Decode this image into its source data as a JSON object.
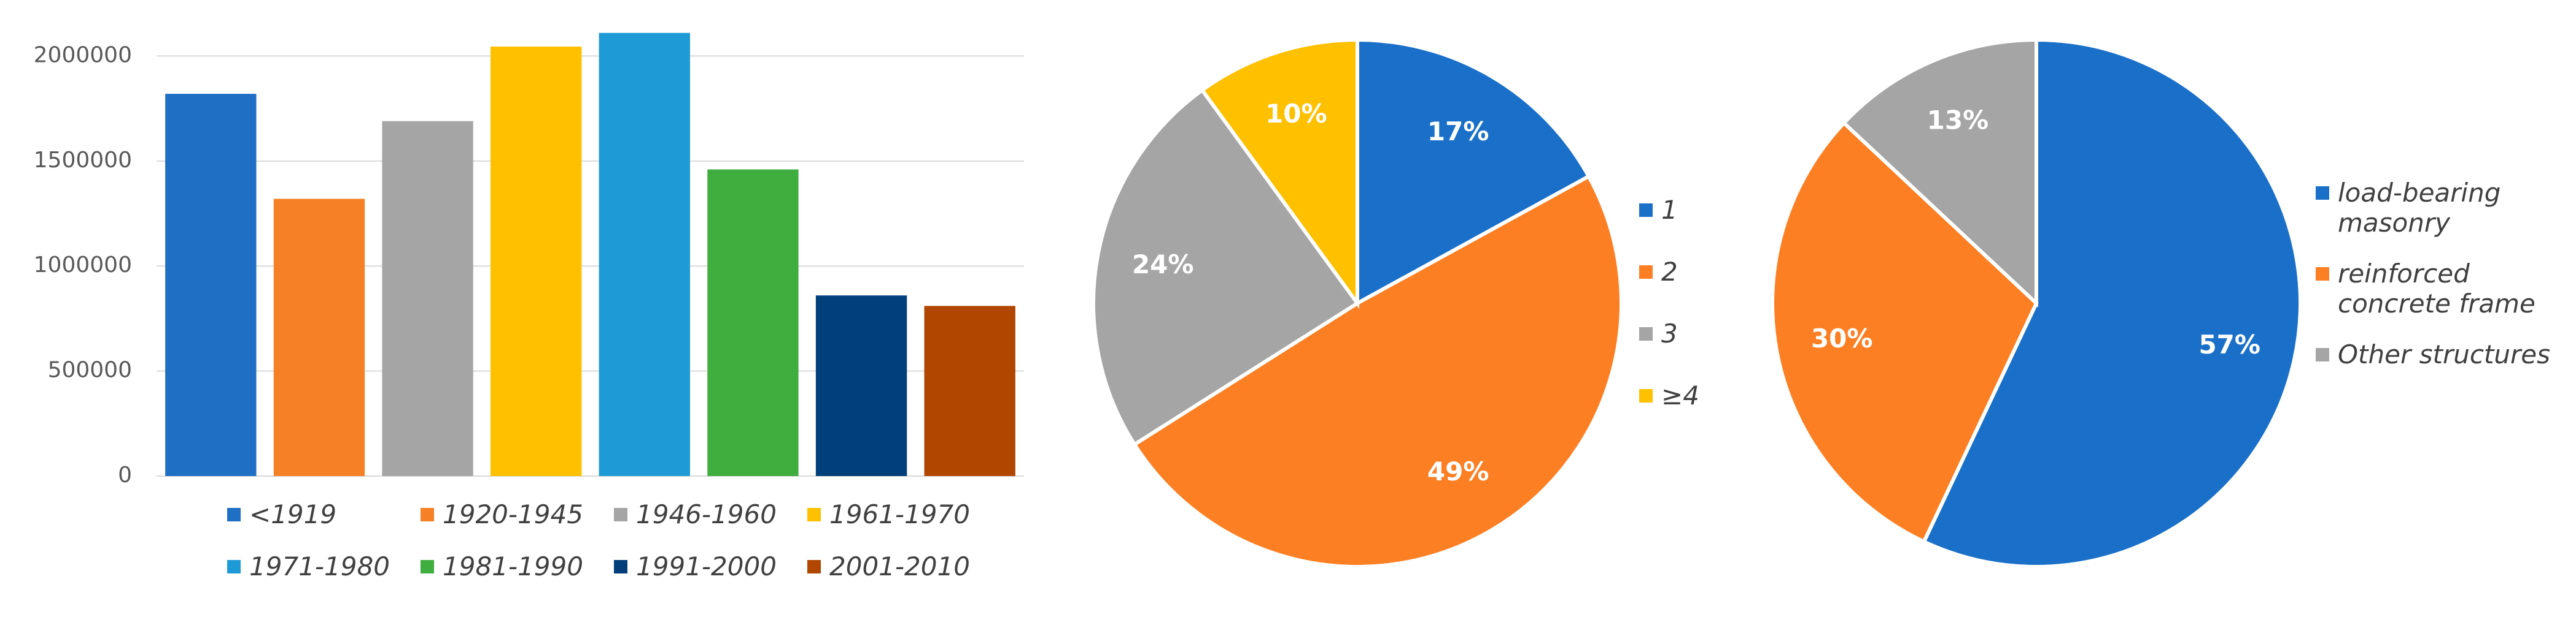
{
  "chart_data": [
    {
      "type": "bar",
      "categories": [
        "<1919",
        "1920-1945",
        "1946-1960",
        "1961-1970",
        "1971-1980",
        "1981-1990",
        "1991-2000",
        "2001-2010"
      ],
      "values": [
        1820000,
        1320000,
        1690000,
        2045000,
        2110000,
        1460000,
        860000,
        810000
      ],
      "colors": [
        "#1f6fc5",
        "#f58025",
        "#a5a5a5",
        "#ffc000",
        "#1e9bd7",
        "#3fae3f",
        "#003f7a",
        "#b04600"
      ],
      "ylim": [
        0,
        2150000
      ],
      "yticks": [
        0,
        500000,
        1000000,
        1500000,
        2000000
      ],
      "grid": true,
      "legend": "bottom"
    },
    {
      "type": "pie",
      "categories": [
        "1",
        "2",
        "3",
        "≥4"
      ],
      "values": [
        17,
        49,
        24,
        10
      ],
      "value_labels": [
        "17%",
        "49%",
        "24%",
        "10%"
      ],
      "colors": [
        "#1a70c8",
        "#fd7f23",
        "#a5a5a5",
        "#ffc000"
      ],
      "legend": "right"
    },
    {
      "type": "pie",
      "categories": [
        "load-bearing masonry",
        "reinforced concrete frame",
        "Other structures"
      ],
      "values": [
        57,
        30,
        13
      ],
      "value_labels": [
        "57%",
        "30%",
        "13%"
      ],
      "colors": [
        "#1a70c8",
        "#fd7f23",
        "#a5a5a5"
      ],
      "legend": "right"
    }
  ]
}
